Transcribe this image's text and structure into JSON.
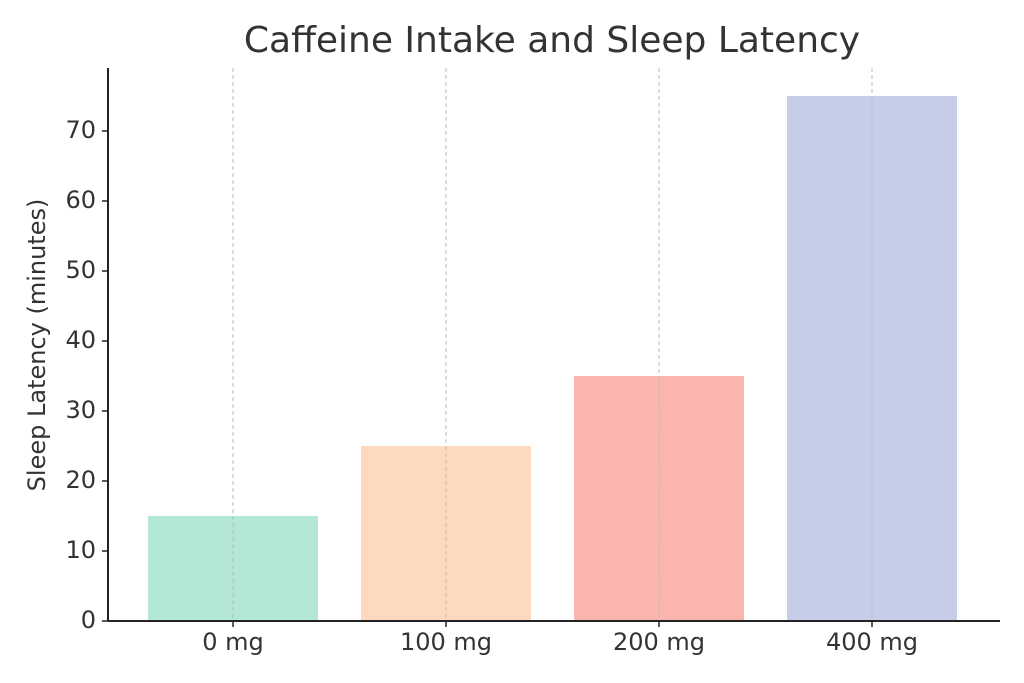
{
  "chart_data": {
    "type": "bar",
    "title": "Caffeine Intake and Sleep Latency",
    "y_label": "Sleep Latency (minutes)",
    "categories": [
      "0 mg",
      "100 mg",
      "200 mg",
      "400 mg"
    ],
    "values": [
      15,
      25,
      35,
      75
    ],
    "colors": [
      "#b3e9d4",
      "#fdd9bf",
      "#fbb4ae",
      "#c6cde9"
    ],
    "ylim": [
      0,
      79
    ],
    "yticks": [
      0,
      10,
      20,
      30,
      40,
      50,
      60,
      70
    ],
    "grid": true
  }
}
